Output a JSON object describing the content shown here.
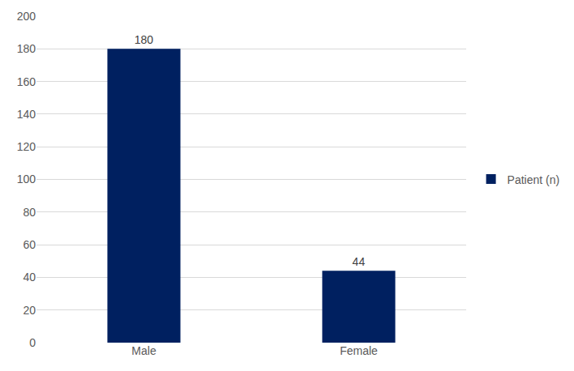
{
  "chart_data": {
    "type": "bar",
    "categories": [
      "Male",
      "Female"
    ],
    "series": [
      {
        "name": "Patient (n)",
        "color": "#002060",
        "values": [
          180,
          44
        ]
      }
    ],
    "ylim": [
      0,
      200
    ],
    "yticks": [
      0,
      20,
      40,
      60,
      80,
      100,
      120,
      140,
      160,
      180,
      200
    ],
    "grid": true,
    "legend": "right",
    "data_labels": true
  }
}
